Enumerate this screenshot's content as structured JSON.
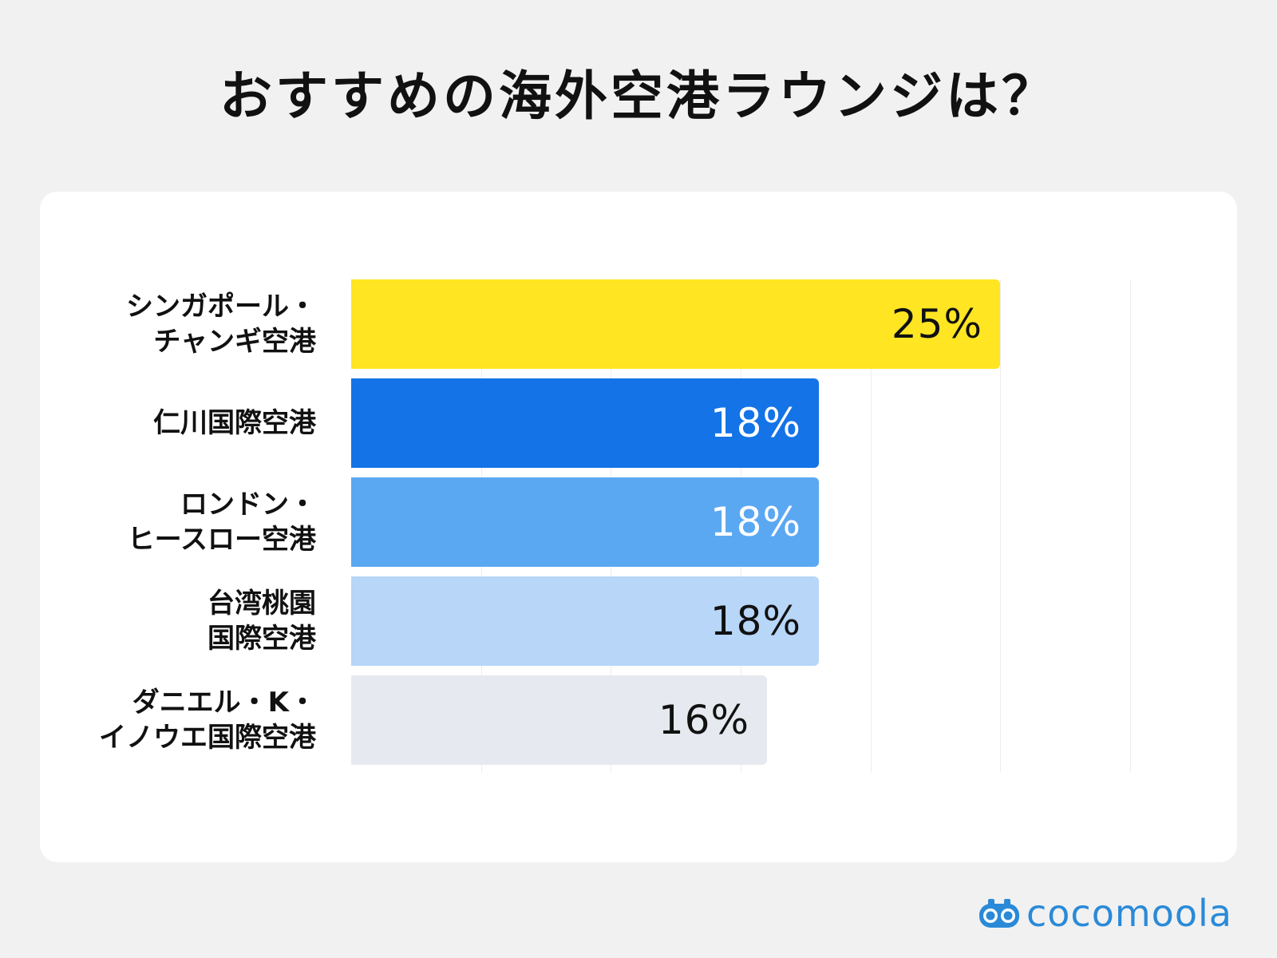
{
  "title": "おすすめの海外空港ラウンジは？",
  "brand": {
    "name": "cocomoola",
    "icon": "binoculars-icon",
    "color": "#2a8ad8"
  },
  "chart_data": {
    "type": "bar",
    "orientation": "horizontal",
    "title": "おすすめの海外空港ラウンジは？",
    "xlabel": "",
    "ylabel": "",
    "xlim": [
      0,
      30
    ],
    "grid": true,
    "value_format": "{v}%",
    "categories": [
      [
        "シンガポール・",
        "チャンギ空港"
      ],
      [
        "仁川国際空港"
      ],
      [
        "ロンドン・",
        "ヒースロー空港"
      ],
      [
        "台湾桃園",
        "国際空港"
      ],
      [
        "ダニエル・K・",
        "イノウエ国際空港"
      ]
    ],
    "values": [
      25,
      18,
      18,
      18,
      16
    ],
    "value_labels": [
      "25%",
      "18%",
      "18%",
      "18%",
      "16%"
    ],
    "colors": [
      "#ffe522",
      "#1473e6",
      "#5ba8f2",
      "#b7d6f8",
      "#e6e9ef"
    ],
    "label_colors": [
      "#111111",
      "#ffffff",
      "#ffffff",
      "#111111",
      "#111111"
    ]
  }
}
